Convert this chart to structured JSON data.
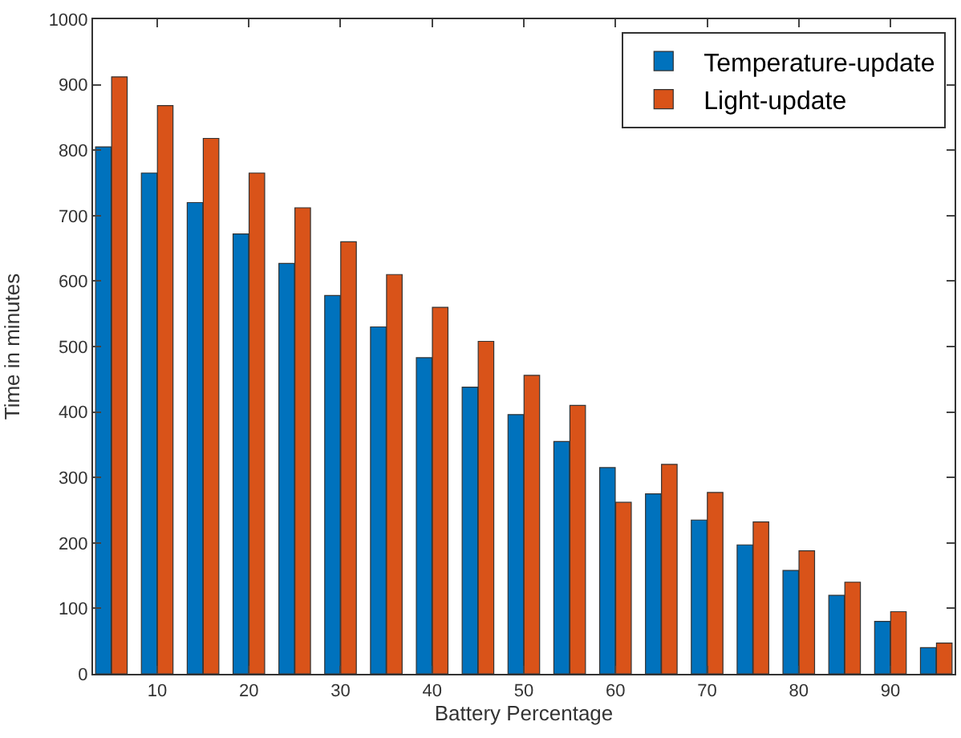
{
  "chart_data": {
    "type": "bar",
    "xlabel": "Battery Percentage",
    "ylabel": "Time in minutes",
    "x": [
      5,
      10,
      15,
      20,
      25,
      30,
      35,
      40,
      45,
      50,
      55,
      60,
      65,
      70,
      75,
      80,
      85,
      90,
      95
    ],
    "series": [
      {
        "name": "Temperature-update",
        "color": "#0072bd",
        "values": [
          805,
          765,
          720,
          672,
          627,
          578,
          530,
          483,
          438,
          396,
          355,
          315,
          275,
          235,
          197,
          158,
          120,
          80,
          40
        ]
      },
      {
        "name": "Light-update",
        "color": "#d95319",
        "values": [
          912,
          868,
          818,
          765,
          712,
          660,
          610,
          560,
          508,
          456,
          410,
          262,
          320,
          277,
          232,
          188,
          140,
          95,
          47
        ]
      }
    ],
    "xlim": [
      3,
      97
    ],
    "xticks": [
      10,
      20,
      30,
      40,
      50,
      60,
      70,
      80,
      90
    ],
    "ylim": [
      0,
      1000
    ],
    "yticks": [
      0,
      100,
      200,
      300,
      400,
      500,
      600,
      700,
      800,
      900,
      1000
    ],
    "legend": "top right"
  }
}
